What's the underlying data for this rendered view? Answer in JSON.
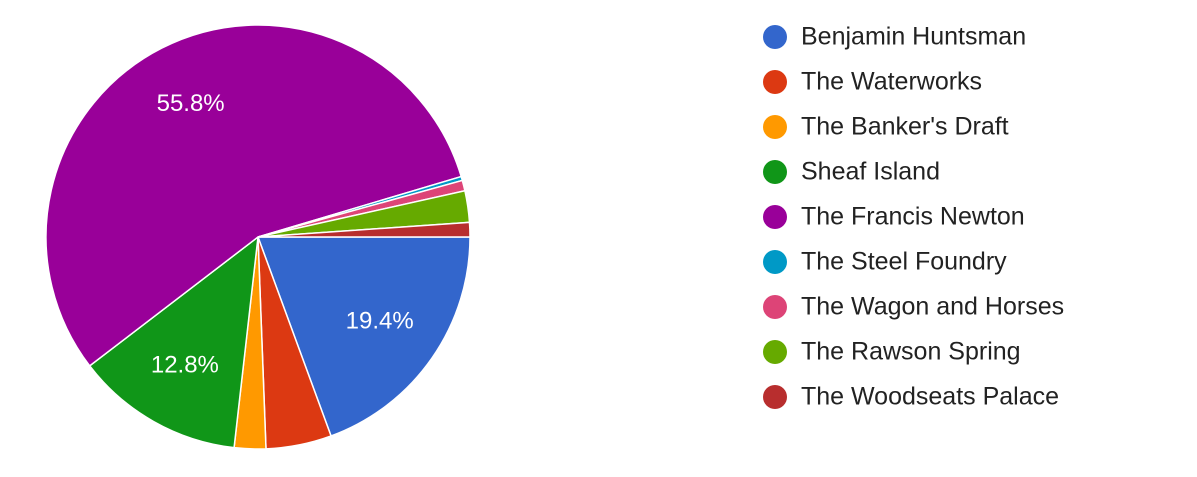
{
  "chart_data": {
    "type": "pie",
    "categories": [
      "Benjamin Huntsman",
      "The Waterworks",
      "The Banker's Draft",
      "Sheaf Island",
      "The Francis Newton",
      "The Steel Foundry",
      "The Wagon and Horses",
      "The Rawson Spring",
      "The Woodseats Palace"
    ],
    "values": [
      19.4,
      5.0,
      2.4,
      12.8,
      55.8,
      0.3,
      0.8,
      2.4,
      1.1
    ],
    "value_labels": [
      "19.4%",
      null,
      null,
      "12.8%",
      "55.8%",
      null,
      null,
      null,
      null
    ],
    "colors": [
      "#3366cc",
      "#dc3912",
      "#ff9900",
      "#109618",
      "#990099",
      "#0099c6",
      "#dd4477",
      "#66aa00",
      "#b82e2e"
    ],
    "legend": "right"
  }
}
